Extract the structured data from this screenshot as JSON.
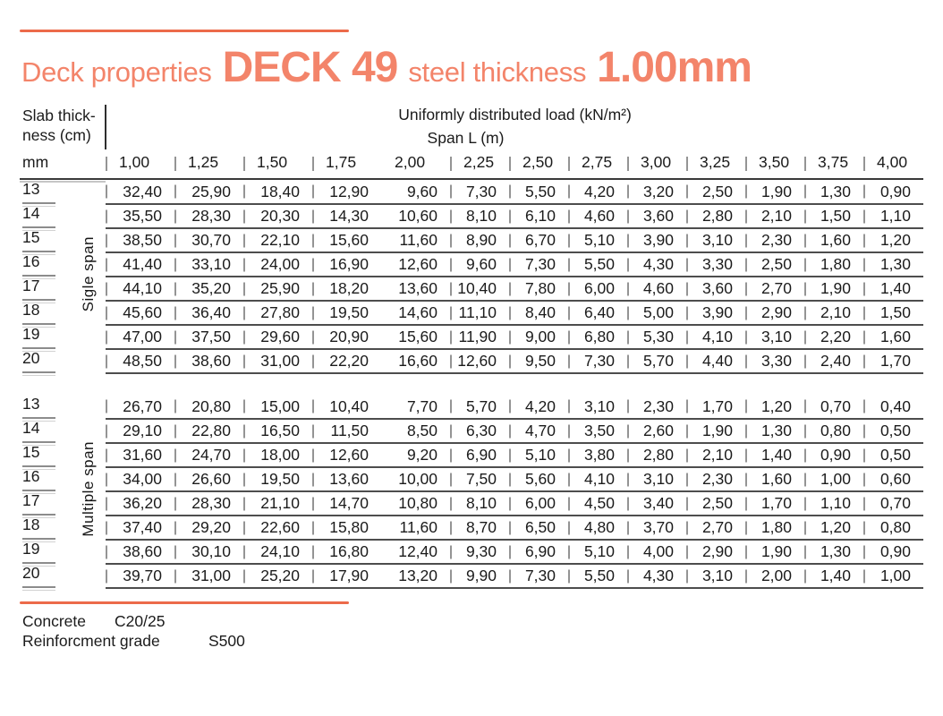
{
  "title": {
    "prefix": "Deck properties",
    "product": "DECK 49",
    "mid": "steel thickness",
    "thickness": "1.00mm"
  },
  "colors": {
    "accent_text": "#f3846a",
    "accent_rule": "#ec6a4a",
    "table_ink": "#1b1b1b"
  },
  "table": {
    "corner_header_line1": "Slab thick-",
    "corner_header_line2": "ness (cm)",
    "load_header": "Uniformly distributed load (kN/m²)",
    "span_header": "Span L (m)",
    "unit_label": "mm",
    "span_columns": [
      "1,00",
      "1,25",
      "1,50",
      "1,75",
      "2,00",
      "2,25",
      "2,50",
      "2,75",
      "3,00",
      "3,25",
      "3,50",
      "3,75",
      "4,00"
    ],
    "sections": [
      {
        "label": "Sigle span",
        "rows": [
          {
            "thickness": "13",
            "values": [
              "32,40",
              "25,90",
              "18,40",
              "12,90",
              "9,60",
              "7,30",
              "5,50",
              "4,20",
              "3,20",
              "2,50",
              "1,90",
              "1,30",
              "0,90"
            ]
          },
          {
            "thickness": "14",
            "values": [
              "35,50",
              "28,30",
              "20,30",
              "14,30",
              "10,60",
              "8,10",
              "6,10",
              "4,60",
              "3,60",
              "2,80",
              "2,10",
              "1,50",
              "1,10"
            ]
          },
          {
            "thickness": "15",
            "values": [
              "38,50",
              "30,70",
              "22,10",
              "15,60",
              "11,60",
              "8,90",
              "6,70",
              "5,10",
              "3,90",
              "3,10",
              "2,30",
              "1,60",
              "1,20"
            ]
          },
          {
            "thickness": "16",
            "values": [
              "41,40",
              "33,10",
              "24,00",
              "16,90",
              "12,60",
              "9,60",
              "7,30",
              "5,50",
              "4,30",
              "3,30",
              "2,50",
              "1,80",
              "1,30"
            ]
          },
          {
            "thickness": "17",
            "values": [
              "44,10",
              "35,20",
              "25,90",
              "18,20",
              "13,60",
              "10,40",
              "7,80",
              "6,00",
              "4,60",
              "3,60",
              "2,70",
              "1,90",
              "1,40"
            ]
          },
          {
            "thickness": "18",
            "values": [
              "45,60",
              "36,40",
              "27,80",
              "19,50",
              "14,60",
              "11,10",
              "8,40",
              "6,40",
              "5,00",
              "3,90",
              "2,90",
              "2,10",
              "1,50"
            ]
          },
          {
            "thickness": "19",
            "values": [
              "47,00",
              "37,50",
              "29,60",
              "20,90",
              "15,60",
              "11,90",
              "9,00",
              "6,80",
              "5,30",
              "4,10",
              "3,10",
              "2,20",
              "1,60"
            ]
          },
          {
            "thickness": "20",
            "values": [
              "48,50",
              "38,60",
              "31,00",
              "22,20",
              "16,60",
              "12,60",
              "9,50",
              "7,30",
              "5,70",
              "4,40",
              "3,30",
              "2,40",
              "1,70"
            ]
          }
        ]
      },
      {
        "label": "Multiple span",
        "rows": [
          {
            "thickness": "13",
            "values": [
              "26,70",
              "20,80",
              "15,00",
              "10,40",
              "7,70",
              "5,70",
              "4,20",
              "3,10",
              "2,30",
              "1,70",
              "1,20",
              "0,70",
              "0,40"
            ]
          },
          {
            "thickness": "14",
            "values": [
              "29,10",
              "22,80",
              "16,50",
              "11,50",
              "8,50",
              "6,30",
              "4,70",
              "3,50",
              "2,60",
              "1,90",
              "1,30",
              "0,80",
              "0,50"
            ]
          },
          {
            "thickness": "15",
            "values": [
              "31,60",
              "24,70",
              "18,00",
              "12,60",
              "9,20",
              "6,90",
              "5,10",
              "3,80",
              "2,80",
              "2,10",
              "1,40",
              "0,90",
              "0,50"
            ]
          },
          {
            "thickness": "16",
            "values": [
              "34,00",
              "26,60",
              "19,50",
              "13,60",
              "10,00",
              "7,50",
              "5,60",
              "4,10",
              "3,10",
              "2,30",
              "1,60",
              "1,00",
              "0,60"
            ]
          },
          {
            "thickness": "17",
            "values": [
              "36,20",
              "28,30",
              "21,10",
              "14,70",
              "10,80",
              "8,10",
              "6,00",
              "4,50",
              "3,40",
              "2,50",
              "1,70",
              "1,10",
              "0,70"
            ]
          },
          {
            "thickness": "18",
            "values": [
              "37,40",
              "29,20",
              "22,60",
              "15,80",
              "11,60",
              "8,70",
              "6,50",
              "4,80",
              "3,70",
              "2,70",
              "1,80",
              "1,20",
              "0,80"
            ]
          },
          {
            "thickness": "19",
            "values": [
              "38,60",
              "30,10",
              "24,10",
              "16,80",
              "12,40",
              "9,30",
              "6,90",
              "5,10",
              "4,00",
              "2,90",
              "1,90",
              "1,30",
              "0,90"
            ]
          },
          {
            "thickness": "20",
            "values": [
              "39,70",
              "31,00",
              "25,20",
              "17,90",
              "13,20",
              "9,90",
              "7,30",
              "5,50",
              "4,30",
              "3,10",
              "2,00",
              "1,40",
              "1,00"
            ]
          }
        ]
      }
    ]
  },
  "footer": {
    "concrete_label": "Concrete",
    "concrete_value": "C20/25",
    "reinforcement_label": "Reinforcment grade",
    "reinforcement_value": "S500"
  }
}
